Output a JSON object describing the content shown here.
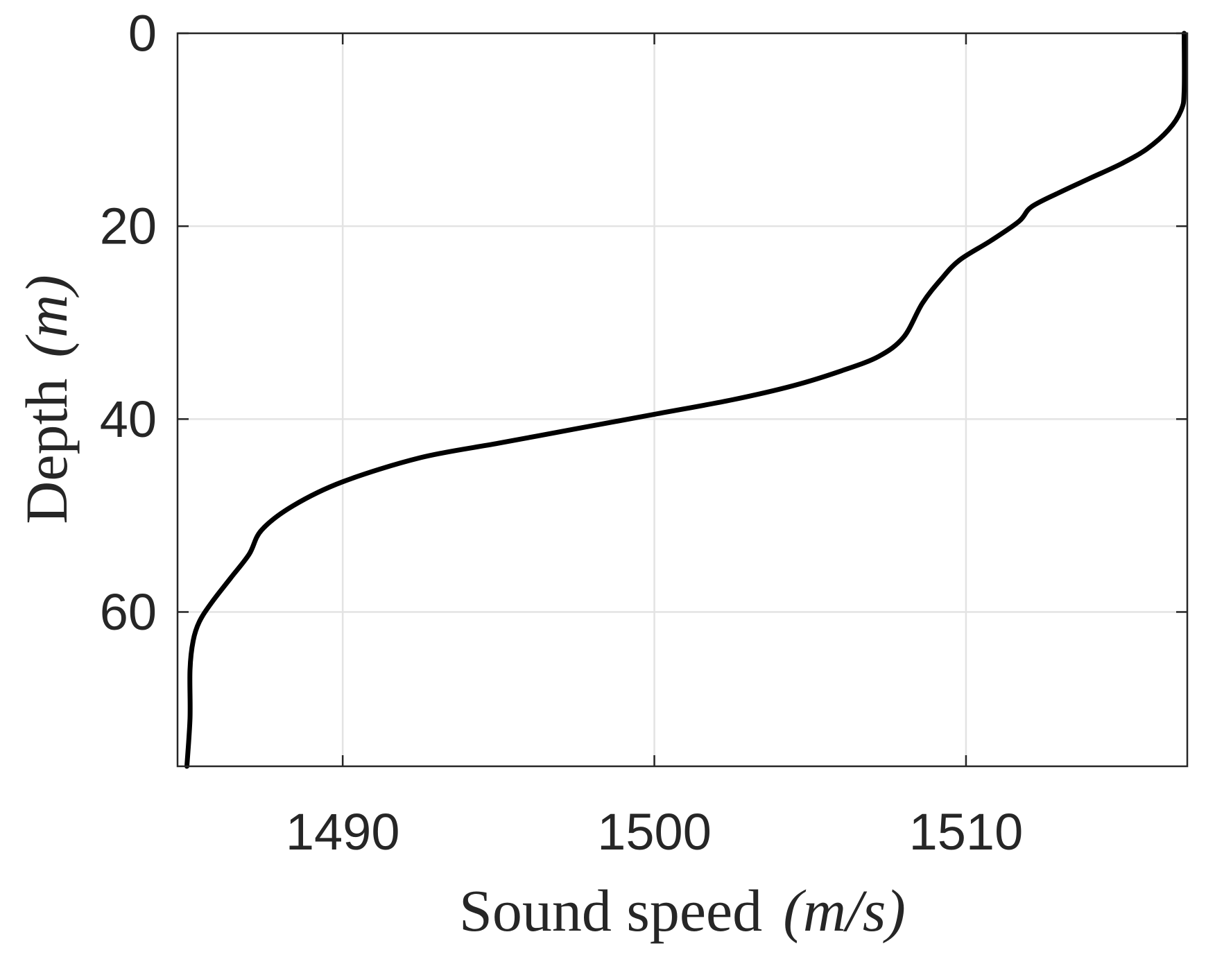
{
  "chart_data": {
    "type": "line",
    "xlabel": "Sound speed",
    "xlabel_unit": "(m/s)",
    "ylabel": "Depth",
    "ylabel_unit": "(m)",
    "xlim": [
      1484.7,
      1517.1
    ],
    "ylim": [
      0,
      76
    ],
    "y_reversed": true,
    "x_ticks": [
      1490,
      1500,
      1510
    ],
    "y_ticks": [
      0,
      20,
      40,
      60
    ],
    "grid": true,
    "line_color": "#000000",
    "series": [
      {
        "x": [
          1517.0,
          1517.0,
          1516.9,
          1516.5,
          1515.8,
          1515.0,
          1514.0,
          1513.0,
          1512.1,
          1511.7,
          1510.8,
          1509.8,
          1509.2,
          1508.6,
          1508.0,
          1507.2,
          1506.0,
          1504.5,
          1502.5,
          1500.0,
          1497.5,
          1495.0,
          1492.5,
          1490.0,
          1488.4,
          1487.4,
          1487.0,
          1486.4,
          1485.8,
          1485.4,
          1485.2,
          1485.1,
          1485.1,
          1485.0
        ],
        "y": [
          0,
          6,
          8,
          10,
          12,
          13.5,
          15,
          16.5,
          18,
          19.5,
          21.5,
          23.5,
          25.5,
          28,
          31.5,
          33.5,
          35,
          36.5,
          38,
          39.5,
          41,
          42.5,
          44,
          46.5,
          49,
          51.5,
          54,
          56.5,
          59,
          61,
          63,
          66,
          71,
          76
        ]
      }
    ]
  }
}
